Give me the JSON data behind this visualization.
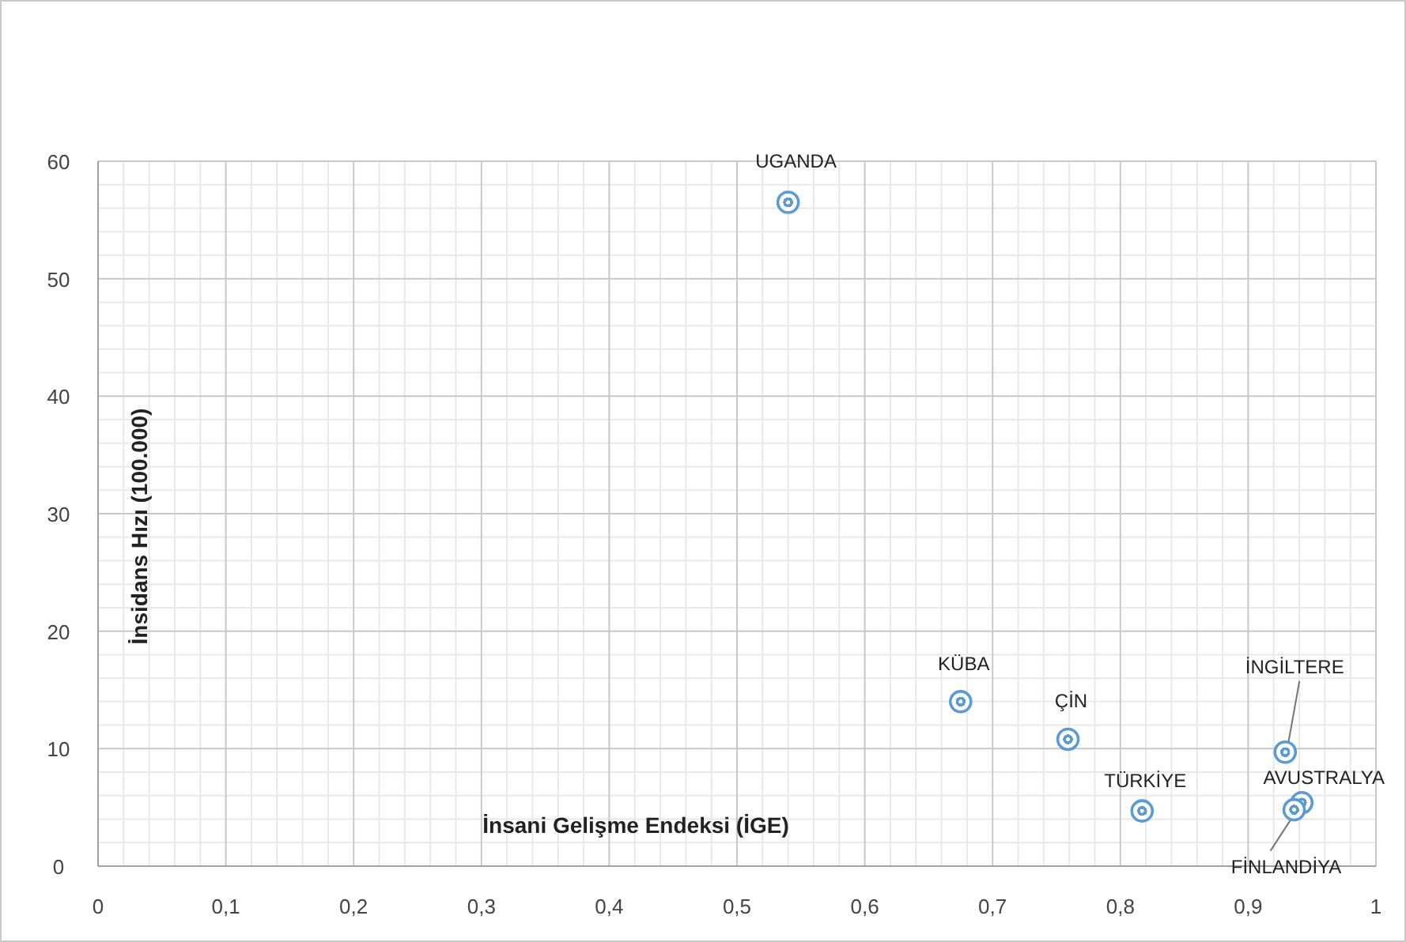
{
  "chart_data": {
    "type": "scatter",
    "xlabel": "İnsani Gelişme Endeksi (İGE)",
    "ylabel": "İnsidans Hızı (100.000)",
    "x": [
      0.54,
      0.675,
      0.759,
      0.817,
      0.929,
      0.942,
      0.936
    ],
    "series": [
      {
        "color": "#5b9bd5",
        "values": [
          56.5,
          14.0,
          10.8,
          4.7,
          9.7,
          5.4,
          4.8
        ]
      }
    ],
    "xlim": [
      0,
      1
    ],
    "ylim": [
      0,
      60
    ],
    "xticks": [
      0,
      {
        "value": 0.1,
        "label": "0,1"
      },
      {
        "value": 0.2,
        "label": "0,2"
      },
      {
        "value": 0.3,
        "label": "0,3"
      },
      {
        "value": 0.4,
        "label": "0,4"
      },
      {
        "value": 0.5,
        "label": "0,5"
      },
      {
        "value": 0.6,
        "label": "0,6"
      },
      {
        "value": 0.7,
        "label": "0,7"
      },
      {
        "value": 0.8,
        "label": "0,8"
      },
      {
        "value": 0.9,
        "label": "0,9"
      },
      1
    ],
    "yticks": [
      0,
      10,
      20,
      30,
      40,
      50,
      60
    ],
    "grid": true,
    "marker": "circle",
    "annotations": [
      {
        "text": "UGANDA",
        "x": 0.54,
        "y": 56.5
      },
      {
        "text": "KÜBA",
        "x": 0.675,
        "y": 14.0
      },
      {
        "text": "ÇİN",
        "x": 0.759,
        "y": 10.8
      },
      {
        "text": "TÜRKİYE",
        "x": 0.817,
        "y": 4.7
      },
      {
        "text": "İNGİLTERE",
        "x": 0.929,
        "y": 9.7
      },
      {
        "text": "AVUSTRALYA",
        "x": 0.942,
        "y": 5.4
      },
      {
        "text": "FİNLANDİYA",
        "x": 0.936,
        "y": 4.8
      }
    ]
  }
}
